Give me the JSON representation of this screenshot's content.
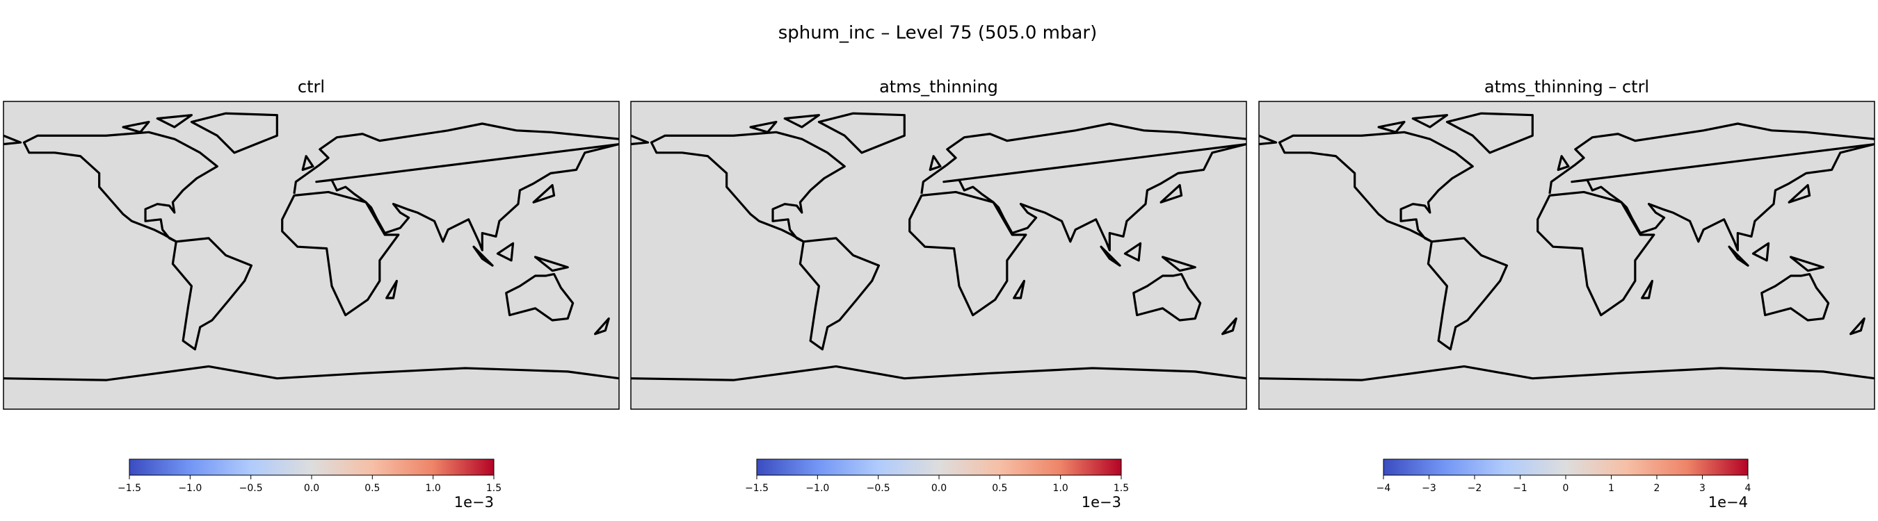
{
  "title": "sphum_inc – Level 75 (505.0 mbar)",
  "colormap": {
    "name": "coolwarm",
    "colors": [
      "#3b4cc0",
      "#7396f5",
      "#b0cbfc",
      "#dddddd",
      "#f6bfa6",
      "#ee8468",
      "#b40426"
    ]
  },
  "panels": [
    {
      "title": "ctrl",
      "colorbar": {
        "lim": [
          -1.5,
          1.5
        ],
        "ticks": [
          {
            "value": -1.5,
            "label": "−1.5"
          },
          {
            "value": -1.0,
            "label": "−1.0"
          },
          {
            "value": -0.5,
            "label": "−0.5"
          },
          {
            "value": 0,
            "label": "0.0"
          },
          0.5,
          {
            "value": 1.0,
            "label": "1.0"
          },
          1.5
        ],
        "offset_label": "1e−3"
      }
    },
    {
      "title": "atms_thinning",
      "colorbar": {
        "lim": [
          -1.5,
          1.5
        ],
        "ticks": [
          {
            "value": -1.5,
            "label": "−1.5"
          },
          {
            "value": -1.0,
            "label": "−1.0"
          },
          {
            "value": -0.5,
            "label": "−0.5"
          },
          {
            "value": 0,
            "label": "0.0"
          },
          0.5,
          {
            "value": 1.0,
            "label": "1.0"
          },
          1.5
        ],
        "offset_label": "1e−3"
      }
    },
    {
      "title": "atms_thinning – ctrl",
      "colorbar": {
        "lim": [
          -4,
          4
        ],
        "ticks": [
          {
            "value": -4,
            "label": "−4"
          },
          {
            "value": -3,
            "label": "−3"
          },
          {
            "value": -2,
            "label": "−2"
          },
          {
            "value": -1,
            "label": "−1"
          },
          0,
          1,
          2,
          3,
          4
        ],
        "offset_label": "1e−4"
      }
    }
  ]
}
